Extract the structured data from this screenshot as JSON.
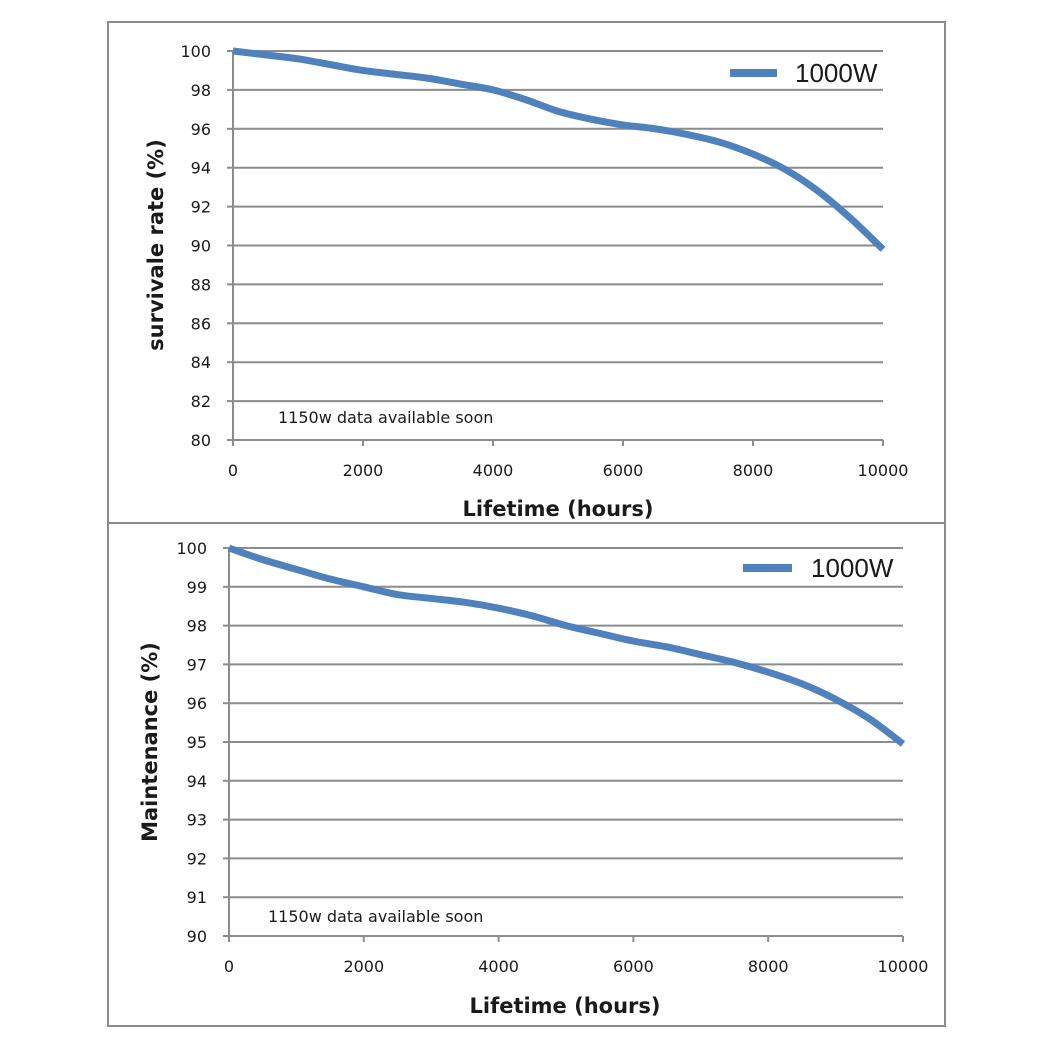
{
  "colors": {
    "series": "#4f81bd",
    "grid": "#8c8c8c",
    "border": "#8c8c8c",
    "text": "#1a1a1a"
  },
  "chart_data": [
    {
      "type": "line",
      "title": "",
      "xlabel": "Lifetime (hours)",
      "ylabel": "survivale rate (%)",
      "xlim": [
        0,
        10000
      ],
      "ylim": [
        80,
        100
      ],
      "x_ticks": [
        0,
        2000,
        4000,
        6000,
        8000,
        10000
      ],
      "y_ticks": [
        80,
        82,
        84,
        86,
        88,
        90,
        92,
        94,
        96,
        98,
        100
      ],
      "grid": true,
      "legend_position": "top-right",
      "annotation": "1150w data available soon",
      "series": [
        {
          "name": "1000W",
          "x": [
            0,
            500,
            1000,
            1500,
            2000,
            2500,
            3000,
            3500,
            4000,
            4500,
            5000,
            5500,
            6000,
            6500,
            7000,
            7500,
            8000,
            8500,
            9000,
            9500,
            10000
          ],
          "y": [
            100,
            99.8,
            99.6,
            99.3,
            99.0,
            98.8,
            98.6,
            98.3,
            98.0,
            97.5,
            96.9,
            96.5,
            96.2,
            96.0,
            95.7,
            95.3,
            94.7,
            93.9,
            92.8,
            91.4,
            89.8
          ]
        }
      ]
    },
    {
      "type": "line",
      "title": "",
      "xlabel": "Lifetime (hours)",
      "ylabel": "Maintenance (%)",
      "xlim": [
        0,
        10000
      ],
      "ylim": [
        90,
        100
      ],
      "x_ticks": [
        0,
        2000,
        4000,
        6000,
        8000,
        10000
      ],
      "y_ticks": [
        90,
        91,
        92,
        93,
        94,
        95,
        96,
        97,
        98,
        99,
        100
      ],
      "grid": true,
      "legend_position": "top-right",
      "annotation": "1150w data available soon",
      "series": [
        {
          "name": "1000W",
          "x": [
            0,
            500,
            1000,
            1500,
            2000,
            2500,
            3000,
            3500,
            4000,
            4500,
            5000,
            5500,
            6000,
            6500,
            7000,
            7500,
            8000,
            8500,
            9000,
            9500,
            10000
          ],
          "y": [
            100,
            99.7,
            99.45,
            99.2,
            99.0,
            98.8,
            98.7,
            98.6,
            98.45,
            98.25,
            98.0,
            97.8,
            97.6,
            97.45,
            97.25,
            97.05,
            96.8,
            96.5,
            96.1,
            95.6,
            94.95
          ]
        }
      ]
    }
  ]
}
